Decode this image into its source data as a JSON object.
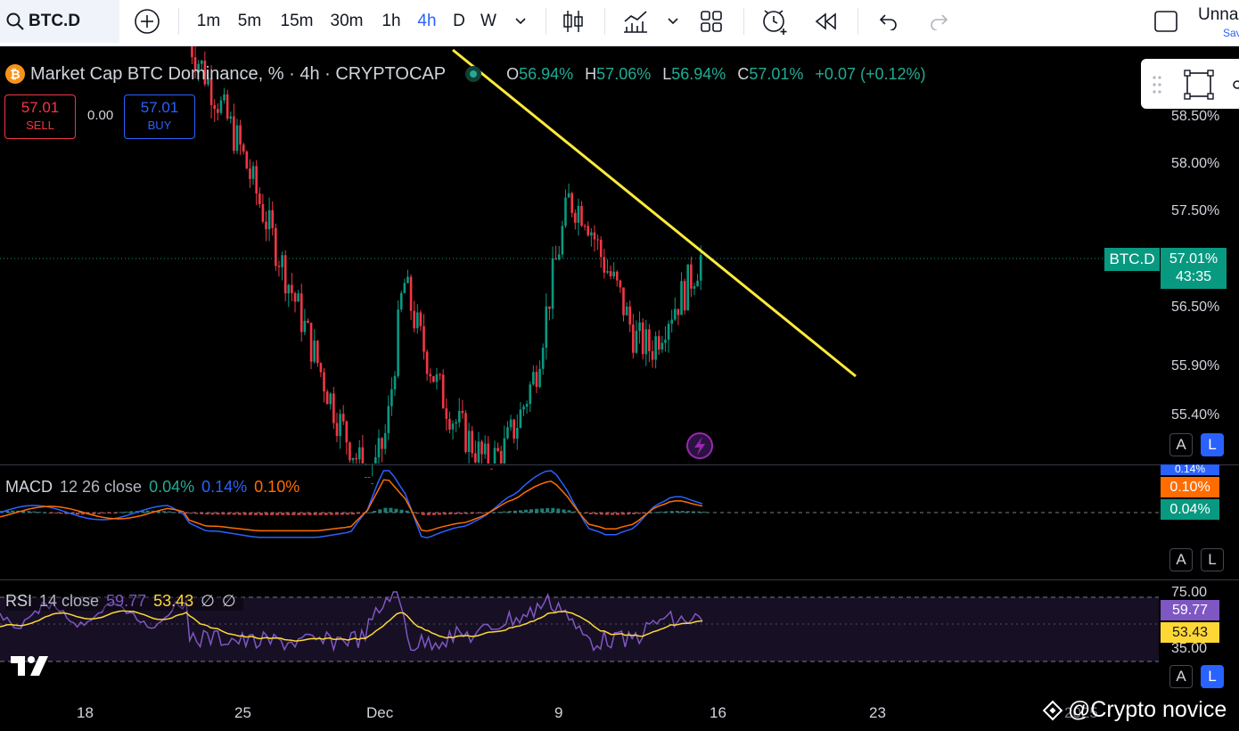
{
  "toolbar": {
    "symbol": "BTC.D",
    "timeframes": [
      "1m",
      "5m",
      "15m",
      "30m",
      "1h",
      "4h",
      "D",
      "W"
    ],
    "active_timeframe": "4h",
    "layout_name": "Unna",
    "save_label": "Sav"
  },
  "legend": {
    "coin_letter": "₿",
    "title": "Market Cap BTC Dominance, % · 4h · CRYPTOCAP",
    "open_label": "O",
    "open": "56.94%",
    "high_label": "H",
    "high": "57.06%",
    "low_label": "L",
    "low": "56.94%",
    "close_label": "C",
    "close": "57.01%",
    "change": "+0.07 (+0.12%)"
  },
  "trade": {
    "sell_price": "57.01",
    "sell_label": "SELL",
    "spread": "0.00",
    "buy_price": "57.01",
    "buy_label": "BUY"
  },
  "price_axis": {
    "labels": [
      "58.50%",
      "58.00%",
      "57.50%",
      "56.50%",
      "55.90%",
      "55.40%"
    ],
    "symbol_tag": "BTC.D",
    "last_price": "57.01%",
    "countdown": "43:35"
  },
  "macd": {
    "name": "MACD",
    "params": "12 26 close",
    "macd_value": "0.04%",
    "signal_value": "0.14%",
    "hist_value": "0.10%",
    "tag_top": "0.14%",
    "tag_mid": "0.10%",
    "tag_bottom": "0.04%"
  },
  "rsi": {
    "name": "RSI",
    "params": "14 close",
    "rsi_value": "59.77",
    "ma_value": "53.43",
    "na1": "∅",
    "na2": "∅",
    "upper_label": "75.00",
    "lower_label": "35.00",
    "tag_rsi": "59.77",
    "tag_ma": "53.43"
  },
  "time_axis": [
    "18",
    "25",
    "Dec",
    "9",
    "16",
    "23",
    "2025"
  ],
  "auto_log": {
    "auto": "A",
    "log": "L"
  },
  "watermark": "@Crypto novice",
  "colors": {
    "up": "#089981",
    "down": "#f23645",
    "trendline": "#ffeb3b",
    "macd_line": "#2962ff",
    "signal_line": "#ff6d00",
    "rsi_line": "#7e57c2",
    "rsi_ma": "#fdd835"
  },
  "chart_data": {
    "type": "candlestick",
    "title": "Market Cap BTC Dominance, % · 4h · CRYPTOCAP",
    "close_path": [
      58.9,
      58.6,
      58.3,
      58.0,
      57.6,
      57.2,
      56.8,
      56.4,
      56.0,
      55.6,
      55.3,
      55.0,
      55.5,
      56.8,
      56.3,
      55.9,
      55.6,
      55.4,
      55.2,
      55.3,
      55.6,
      56.0,
      56.8,
      57.5,
      57.4,
      57.0,
      56.7,
      56.3,
      56.2,
      56.5,
      56.7,
      57.0
    ],
    "ylim": [
      55.2,
      58.8
    ],
    "last_close": 57.01
  }
}
